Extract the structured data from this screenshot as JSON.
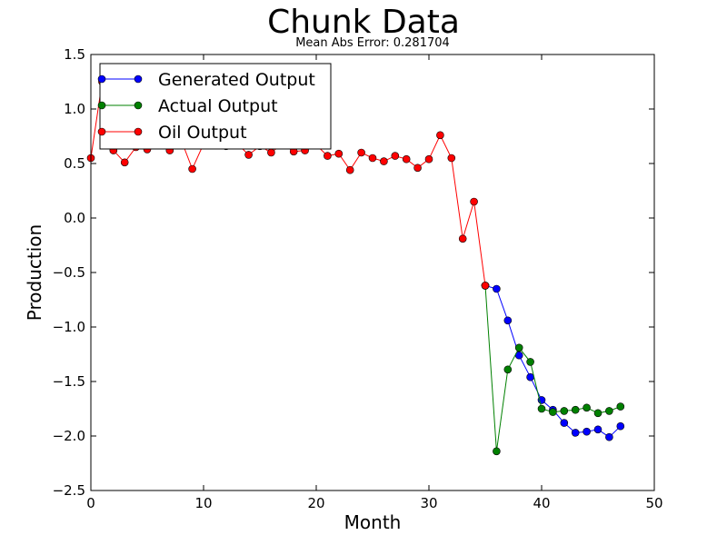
{
  "chart_data": {
    "type": "line",
    "title": "Chunk Data",
    "subtitle": "Mean Abs Error: 0.281704",
    "xlabel": "Month",
    "ylabel": "Production",
    "xlim": [
      0,
      50
    ],
    "ylim": [
      -2.5,
      1.5
    ],
    "xticks": [
      "0",
      "10",
      "20",
      "30",
      "40",
      "50"
    ],
    "yticks": [
      "−2.5",
      "−2.0",
      "−1.5",
      "−1.0",
      "−0.5",
      "0.0",
      "0.5",
      "1.0",
      "1.5"
    ],
    "grid": false,
    "legend_position": "top-left",
    "series": [
      {
        "name": "Generated Output",
        "color": "#0000ff",
        "x": [
          35,
          36,
          37,
          38,
          39,
          40,
          41,
          42,
          43,
          44,
          45,
          46,
          47
        ],
        "values": [
          -0.62,
          -0.65,
          -0.94,
          -1.26,
          -1.46,
          -1.67,
          -1.76,
          -1.88,
          -1.97,
          -1.96,
          -1.94,
          -2.01,
          -1.91
        ]
      },
      {
        "name": "Actual Output",
        "color": "#008000",
        "x": [
          35,
          36,
          37,
          38,
          39,
          40,
          41,
          42,
          43,
          44,
          45,
          46,
          47
        ],
        "values": [
          -0.62,
          -2.14,
          -1.39,
          -1.19,
          -1.32,
          -1.75,
          -1.78,
          -1.77,
          -1.76,
          -1.74,
          -1.79,
          -1.77,
          -1.73
        ]
      },
      {
        "name": "Oil Output",
        "color": "#ff0000",
        "x": [
          0,
          1,
          2,
          3,
          4,
          5,
          6,
          7,
          8,
          9,
          10,
          11,
          12,
          13,
          14,
          15,
          16,
          17,
          18,
          19,
          20,
          21,
          22,
          23,
          24,
          25,
          26,
          27,
          28,
          29,
          30,
          31,
          32,
          33,
          34,
          35
        ],
        "values": [
          0.55,
          1.25,
          0.62,
          0.51,
          0.65,
          0.63,
          0.7,
          0.62,
          0.72,
          0.45,
          0.68,
          0.7,
          0.66,
          0.68,
          0.58,
          0.66,
          0.6,
          0.68,
          0.61,
          0.62,
          0.67,
          0.57,
          0.59,
          0.44,
          0.6,
          0.55,
          0.52,
          0.57,
          0.54,
          0.46,
          0.54,
          0.76,
          0.55,
          -0.19,
          0.15,
          -0.62
        ]
      }
    ]
  }
}
